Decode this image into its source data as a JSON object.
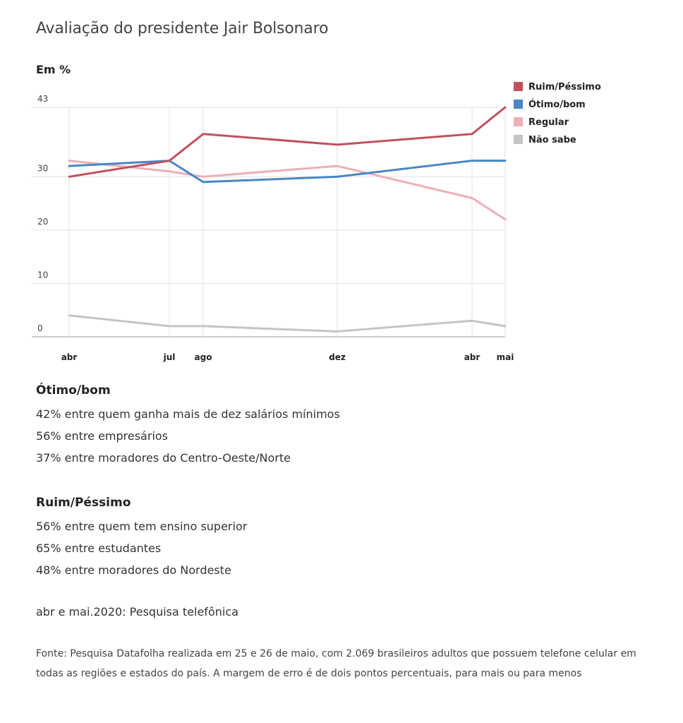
{
  "title": "Avaliação do presidente Jair Bolsonaro",
  "unit_label": "Em %",
  "chart_data": {
    "type": "line",
    "title": "Avaliação do presidente Jair Bolsonaro",
    "ylabel": "Em %",
    "categories": [
      "abr",
      "jul",
      "ago",
      "dez",
      "abr",
      "mai"
    ],
    "yticks": [
      0,
      10,
      20,
      30,
      43
    ],
    "ylim": [
      0,
      43
    ],
    "grid": true,
    "legend_position": "top-right",
    "series": [
      {
        "name": "Ruim/Péssimo",
        "color": "#c1505e",
        "values": [
          30,
          33,
          38,
          36,
          38,
          43
        ]
      },
      {
        "name": "Ótimo/bom",
        "color": "#4a86c5",
        "values": [
          32,
          33,
          29,
          30,
          33,
          33
        ]
      },
      {
        "name": "Regular",
        "color": "#ebb0b8",
        "values": [
          33,
          31,
          30,
          32,
          26,
          22
        ]
      },
      {
        "name": "Não sabe",
        "color": "#c4c4c4",
        "values": [
          4,
          2,
          2,
          1,
          3,
          2
        ]
      }
    ]
  },
  "sections": [
    {
      "heading": "Ótimo/bom",
      "lines": [
        "42% entre quem ganha mais de dez salários mínimos",
        "56% entre empresários",
        "37% entre moradores do Centro-Oeste/Norte"
      ]
    },
    {
      "heading": "Ruim/Péssimo",
      "lines": [
        "56% entre quem tem ensino superior",
        "65% entre estudantes",
        "48% entre moradores do Nordeste"
      ]
    }
  ],
  "note": "abr e mai.2020: Pesquisa telefônica",
  "source": "Fonte: Pesquisa Datafolha realizada em 25 e 26 de maio, com 2.069 brasileiros adultos que possuem telefone celular em todas as regiões e estados do país. A margem de erro é de dois pontos percentuais, para mais ou para menos"
}
